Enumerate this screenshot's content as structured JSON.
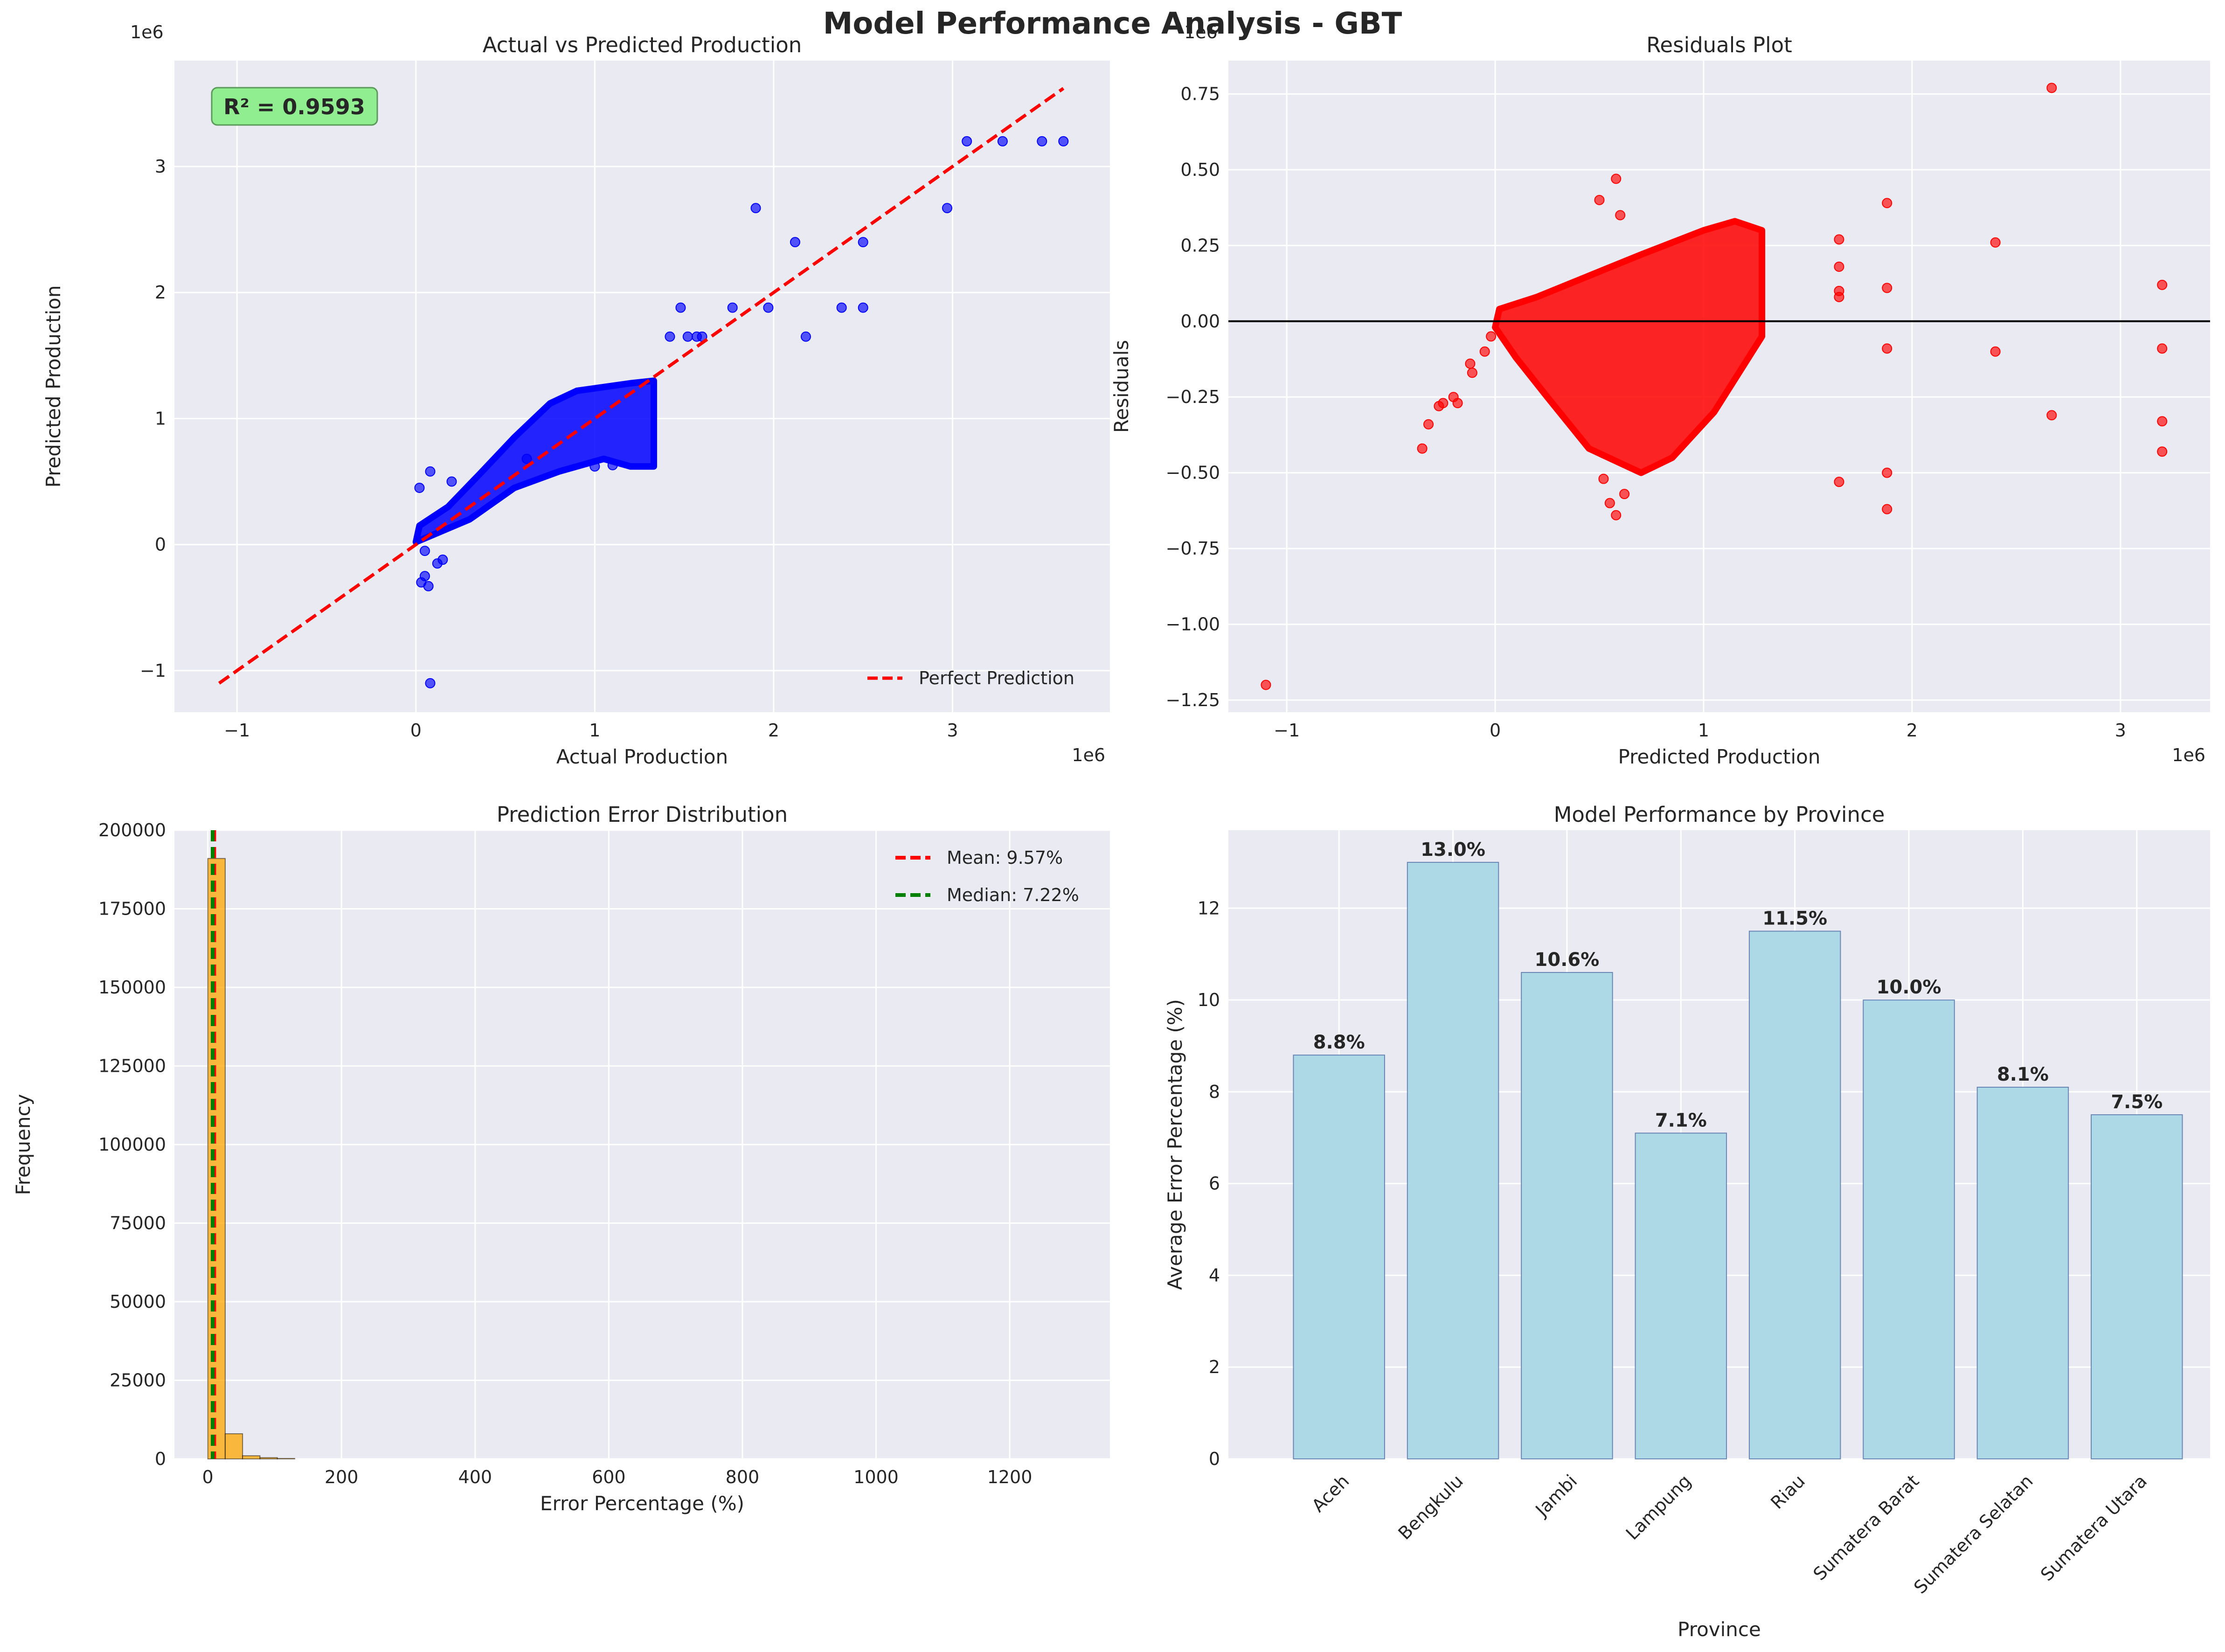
{
  "figure": {
    "suptitle": "Model Performance Analysis - GBT"
  },
  "chart_data": [
    {
      "type": "scatter",
      "title": "Actual vs Predicted Production",
      "xlabel": "Actual Production",
      "ylabel": "Predicted Production",
      "x_offset_label": "1e6",
      "y_offset_label": "1e6",
      "xlim": [
        -1.35,
        3.88
      ],
      "ylim": [
        -1.33,
        3.84
      ],
      "xticks": [
        -1,
        0,
        1,
        2,
        3
      ],
      "yticks": [
        -1,
        0,
        1,
        2,
        3
      ],
      "grid": true,
      "point_color": "#0000ff",
      "line_color": "#ff0000",
      "annotation": "R² = 0.9593",
      "annotation_color": "#90ee90",
      "legend": {
        "position": "bottom-right",
        "entries": [
          "Perfect Prediction"
        ]
      },
      "reference_line": {
        "name": "Perfect Prediction",
        "points": [
          [
            -1.1,
            -1.1
          ],
          [
            3.62,
            3.62
          ]
        ]
      },
      "dense_cloud": {
        "polygon": [
          [
            0.0,
            0.02
          ],
          [
            0.1,
            0.08
          ],
          [
            0.3,
            0.2
          ],
          [
            0.55,
            0.45
          ],
          [
            0.8,
            0.58
          ],
          [
            1.05,
            0.68
          ],
          [
            1.2,
            0.62
          ],
          [
            1.33,
            0.62
          ],
          [
            1.33,
            1.3
          ],
          [
            1.2,
            1.28
          ],
          [
            0.9,
            1.22
          ],
          [
            0.75,
            1.12
          ],
          [
            0.55,
            0.85
          ],
          [
            0.35,
            0.55
          ],
          [
            0.18,
            0.3
          ],
          [
            0.02,
            0.15
          ]
        ]
      },
      "points": [
        [
          0.08,
          -1.1
        ],
        [
          0.03,
          -0.3
        ],
        [
          0.07,
          -0.33
        ],
        [
          0.05,
          -0.25
        ],
        [
          0.12,
          -0.15
        ],
        [
          0.15,
          -0.12
        ],
        [
          0.05,
          -0.05
        ],
        [
          0.02,
          0.45
        ],
        [
          0.08,
          0.58
        ],
        [
          0.2,
          0.5
        ],
        [
          0.62,
          0.68
        ],
        [
          1.0,
          0.62
        ],
        [
          1.1,
          0.63
        ],
        [
          1.48,
          1.88
        ],
        [
          1.52,
          1.65
        ],
        [
          1.42,
          1.65
        ],
        [
          1.57,
          1.65
        ],
        [
          1.6,
          1.65
        ],
        [
          1.77,
          1.88
        ],
        [
          1.9,
          2.67
        ],
        [
          1.97,
          1.88
        ],
        [
          2.12,
          2.4
        ],
        [
          2.18,
          1.65
        ],
        [
          2.38,
          1.88
        ],
        [
          2.5,
          2.4
        ],
        [
          2.5,
          1.88
        ],
        [
          2.97,
          2.67
        ],
        [
          3.08,
          3.2
        ],
        [
          3.28,
          3.2
        ],
        [
          3.5,
          3.2
        ],
        [
          3.62,
          3.2
        ]
      ]
    },
    {
      "type": "scatter",
      "title": "Residuals Plot",
      "xlabel": "Predicted Production",
      "ylabel": "Residuals",
      "x_offset_label": "1e6",
      "y_offset_label": "1e6",
      "xlim": [
        -1.28,
        3.43
      ],
      "ylim": [
        -1.29,
        0.86
      ],
      "xticks": [
        -1,
        0,
        1,
        2,
        3
      ],
      "yticks": [
        -1.25,
        -1.0,
        -0.75,
        -0.5,
        -0.25,
        0.0,
        0.25,
        0.5,
        0.75
      ],
      "ytick_labels": [
        "−1.25",
        "−1.00",
        "−0.75",
        "−0.50",
        "−0.25",
        "0.00",
        "0.25",
        "0.50",
        "0.75"
      ],
      "grid": true,
      "point_color": "#ff0000",
      "hline": 0,
      "dense_cloud": {
        "polygon": [
          [
            0.0,
            -0.02
          ],
          [
            0.1,
            -0.12
          ],
          [
            0.25,
            -0.25
          ],
          [
            0.45,
            -0.42
          ],
          [
            0.7,
            -0.5
          ],
          [
            0.85,
            -0.45
          ],
          [
            1.05,
            -0.3
          ],
          [
            1.28,
            -0.05
          ],
          [
            1.28,
            0.3
          ],
          [
            1.15,
            0.33
          ],
          [
            1.0,
            0.3
          ],
          [
            0.7,
            0.22
          ],
          [
            0.45,
            0.15
          ],
          [
            0.2,
            0.08
          ],
          [
            0.02,
            0.04
          ]
        ]
      },
      "points": [
        [
          -1.1,
          -1.2
        ],
        [
          -0.35,
          -0.42
        ],
        [
          -0.32,
          -0.34
        ],
        [
          -0.27,
          -0.28
        ],
        [
          -0.25,
          -0.27
        ],
        [
          -0.2,
          -0.25
        ],
        [
          -0.18,
          -0.27
        ],
        [
          -0.12,
          -0.14
        ],
        [
          -0.11,
          -0.17
        ],
        [
          -0.05,
          -0.1
        ],
        [
          -0.02,
          -0.05
        ],
        [
          0.5,
          0.4
        ],
        [
          0.58,
          0.47
        ],
        [
          0.6,
          0.35
        ],
        [
          0.55,
          -0.6
        ],
        [
          0.58,
          -0.64
        ],
        [
          0.62,
          -0.57
        ],
        [
          0.52,
          -0.52
        ],
        [
          1.65,
          0.27
        ],
        [
          1.65,
          0.18
        ],
        [
          1.65,
          0.1
        ],
        [
          1.65,
          0.08
        ],
        [
          1.65,
          -0.53
        ],
        [
          1.88,
          0.39
        ],
        [
          1.88,
          0.11
        ],
        [
          1.88,
          -0.09
        ],
        [
          1.88,
          -0.5
        ],
        [
          1.88,
          -0.62
        ],
        [
          2.4,
          0.26
        ],
        [
          2.4,
          -0.1
        ],
        [
          2.67,
          0.77
        ],
        [
          2.67,
          -0.31
        ],
        [
          3.2,
          0.12
        ],
        [
          3.2,
          -0.09
        ],
        [
          3.2,
          -0.33
        ],
        [
          3.2,
          -0.43
        ]
      ]
    },
    {
      "type": "bar",
      "title": "Prediction Error Distribution",
      "xlabel": "Error Percentage (%)",
      "ylabel": "Frequency",
      "xlim": [
        -50,
        1350
      ],
      "ylim": [
        0,
        200000
      ],
      "xticks": [
        0,
        200,
        400,
        600,
        800,
        1000,
        1200
      ],
      "yticks": [
        0,
        25000,
        50000,
        75000,
        100000,
        125000,
        150000,
        175000,
        200000
      ],
      "grid": true,
      "bar_color": "#ffa500",
      "bins": [
        {
          "start": 0,
          "end": 26,
          "count": 191000
        },
        {
          "start": 26,
          "end": 52,
          "count": 8000
        },
        {
          "start": 52,
          "end": 78,
          "count": 1000
        },
        {
          "start": 78,
          "end": 104,
          "count": 400
        },
        {
          "start": 104,
          "end": 130,
          "count": 150
        }
      ],
      "vlines": [
        {
          "name": "Mean: 9.57%",
          "x": 9.57,
          "color": "#ff0000"
        },
        {
          "name": "Median: 7.22%",
          "x": 7.22,
          "color": "#008000"
        }
      ],
      "legend": {
        "position": "top-right",
        "entries": [
          "Mean: 9.57%",
          "Median: 7.22%"
        ]
      }
    },
    {
      "type": "bar",
      "title": "Model Performance by Province",
      "xlabel": "Province",
      "ylabel": "Average Error Percentage (%)",
      "ylim": [
        0,
        13.7
      ],
      "yticks": [
        0,
        2,
        4,
        6,
        8,
        10,
        12
      ],
      "grid": true,
      "bar_color": "#add8e6",
      "categories": [
        "Aceh",
        "Bengkulu",
        "Jambi",
        "Lampung",
        "Riau",
        "Sumatera Barat",
        "Sumatera Selatan",
        "Sumatera Utara"
      ],
      "values": [
        8.8,
        13.0,
        10.6,
        7.1,
        11.5,
        10.0,
        8.1,
        7.5
      ],
      "data_labels": [
        "8.8%",
        "13.0%",
        "10.6%",
        "7.1%",
        "11.5%",
        "10.0%",
        "8.1%",
        "7.5%"
      ]
    }
  ]
}
